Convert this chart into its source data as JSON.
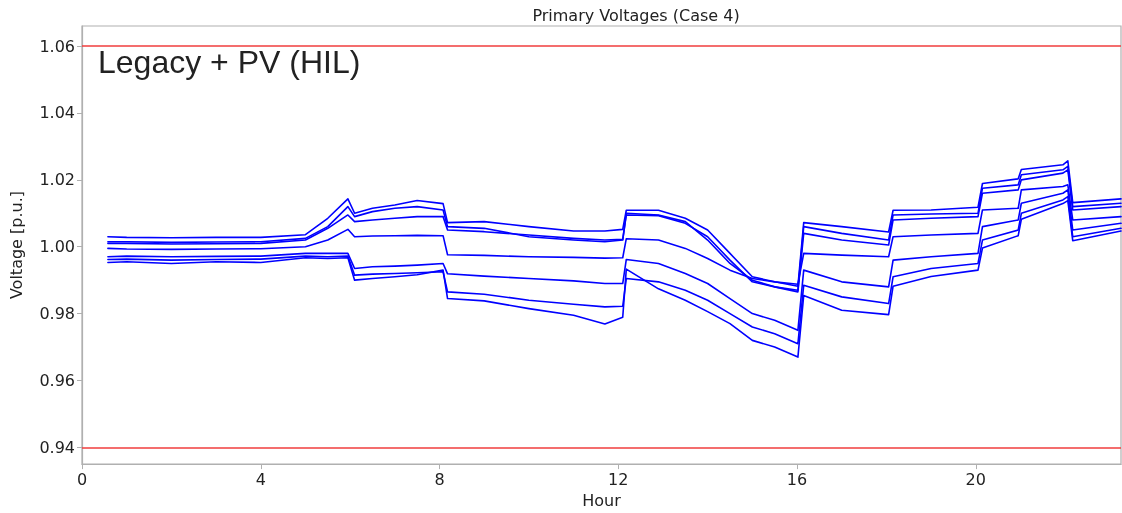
{
  "chart_data": {
    "type": "line",
    "title": "Primary Voltages (Case 4)",
    "xlabel": "Hour",
    "ylabel": "Voltage [p.u.]",
    "annotations": [
      "Legacy + PV (HIL)"
    ],
    "x": [
      0.58,
      1,
      2,
      3,
      4,
      5,
      5.5,
      5.95,
      6.1,
      6.5,
      7,
      7.5,
      8.08,
      8.18,
      9,
      10,
      11,
      11.7,
      12.1,
      12.18,
      12.9,
      13.5,
      14,
      14.5,
      15,
      15.5,
      16.02,
      16.15,
      17,
      18.05,
      18.15,
      19,
      20.05,
      20.15,
      20.95,
      21.02,
      21.95,
      22.06,
      22.17,
      23.25
    ],
    "series": [
      {
        "color": "#0000ff",
        "values": [
          1.003,
          1.0028,
          1.0027,
          1.0028,
          1.0028,
          1.0036,
          1.0085,
          1.0143,
          1.01,
          1.0115,
          1.0125,
          1.0138,
          1.0129,
          1.0072,
          1.0075,
          1.006,
          1.0047,
          1.0047,
          1.0052,
          1.0109,
          1.0109,
          1.0085,
          1.005,
          0.998,
          0.991,
          0.9895,
          0.9882,
          1.0072,
          1.006,
          1.0044,
          1.0109,
          1.011,
          1.0118,
          1.0189,
          1.0203,
          1.0231,
          1.0245,
          1.0257,
          1.0132,
          1.0143
        ]
      },
      {
        "color": "#0000ff",
        "values": [
          1.0015,
          1.0015,
          1.0013,
          1.0014,
          1.0015,
          1.0025,
          1.006,
          1.012,
          1.009,
          1.0105,
          1.0115,
          1.012,
          1.011,
          1.006,
          1.0055,
          1.003,
          1.002,
          1.0015,
          1.002,
          1.01,
          1.0095,
          1.0075,
          1.002,
          0.995,
          0.99,
          0.988,
          0.987,
          1.006,
          1.004,
          1.002,
          1.0095,
          1.0098,
          1.01,
          1.0175,
          1.0185,
          1.0215,
          1.023,
          1.024,
          1.012,
          1.013
        ]
      },
      {
        "color": "#0000ff",
        "values": [
          1.001,
          1.001,
          1.0008,
          1.0009,
          1.001,
          1.002,
          1.0055,
          1.0095,
          1.0075,
          1.008,
          1.0085,
          1.009,
          1.009,
          1.005,
          1.0045,
          1.0035,
          1.0025,
          1.002,
          1.0022,
          1.0095,
          1.0093,
          1.007,
          1.003,
          0.996,
          0.9895,
          0.988,
          0.9865,
          1.004,
          1.002,
          1.0005,
          1.008,
          1.0085,
          1.009,
          1.016,
          1.017,
          1.02,
          1.022,
          1.023,
          1.011,
          1.012
        ]
      },
      {
        "color": "#0000ff",
        "values": [
          0.9995,
          0.9993,
          0.9992,
          0.9993,
          0.9994,
          1,
          1.002,
          1.0052,
          1.003,
          1.0032,
          1.0033,
          1.0034,
          1.0033,
          0.9976,
          0.9974,
          0.997,
          0.9968,
          0.9966,
          0.9967,
          1.0024,
          1.002,
          0.9995,
          0.9965,
          0.993,
          0.9905,
          0.9895,
          0.9888,
          0.998,
          0.9975,
          0.997,
          1.003,
          1.0035,
          1.004,
          1.011,
          1.0115,
          1.017,
          1.018,
          1.0185,
          1.008,
          1.009
        ]
      },
      {
        "color": "#0000ff",
        "values": [
          0.997,
          0.9972,
          0.997,
          0.9971,
          0.9972,
          0.998,
          0.998,
          0.998,
          0.9935,
          0.994,
          0.9942,
          0.9945,
          0.995,
          0.9919,
          0.9912,
          0.9905,
          0.9898,
          0.989,
          0.989,
          0.9962,
          0.995,
          0.992,
          0.989,
          0.9845,
          0.98,
          0.978,
          0.975,
          0.993,
          0.9895,
          0.988,
          0.996,
          0.997,
          0.998,
          1.006,
          1.008,
          1.013,
          1.016,
          1.017,
          1.005,
          1.007
        ]
      },
      {
        "color": "#0000ff",
        "values": [
          0.9962,
          0.9963,
          0.996,
          0.9962,
          0.9963,
          0.9972,
          0.997,
          0.9972,
          0.9915,
          0.9918,
          0.992,
          0.9922,
          0.9925,
          0.9865,
          0.9858,
          0.984,
          0.9828,
          0.982,
          0.9822,
          0.9905,
          0.9895,
          0.987,
          0.984,
          0.98,
          0.976,
          0.974,
          0.971,
          0.9885,
          0.985,
          0.983,
          0.991,
          0.9935,
          0.995,
          1.002,
          1.005,
          1.01,
          1.014,
          1.015,
          1.003,
          1.0055
        ]
      },
      {
        "color": "#0000ff",
        "values": [
          0.9953,
          0.9955,
          0.995,
          0.9955,
          0.9953,
          0.9967,
          0.9965,
          0.9967,
          0.99,
          0.9905,
          0.991,
          0.9916,
          0.993,
          0.9845,
          0.9838,
          0.9815,
          0.9795,
          0.9769,
          0.9789,
          0.9933,
          0.9874,
          0.984,
          0.9806,
          0.977,
          0.972,
          0.97,
          0.967,
          0.9854,
          0.981,
          0.9797,
          0.9882,
          0.9911,
          0.993,
          0.9996,
          1.0033,
          1.0082,
          1.0129,
          1.0138,
          1.0018,
          1.0047
        ]
      }
    ],
    "xlim": [
      0,
      23.25
    ],
    "xticks": [
      0,
      4,
      8,
      12,
      16,
      20
    ],
    "ylim": [
      0.935,
      1.066
    ],
    "yticks": [
      0.94,
      0.96,
      0.98,
      {
        "value": 1,
        "label": "1.00"
      },
      1.02,
      1.04,
      1.06
    ],
    "ref_lines": [
      {
        "axis": "y",
        "value": 1.06,
        "color": "#f03c3c"
      },
      {
        "axis": "y",
        "value": 0.94,
        "color": "#f03c3c"
      }
    ],
    "marker": "none",
    "line_style": "solid"
  }
}
